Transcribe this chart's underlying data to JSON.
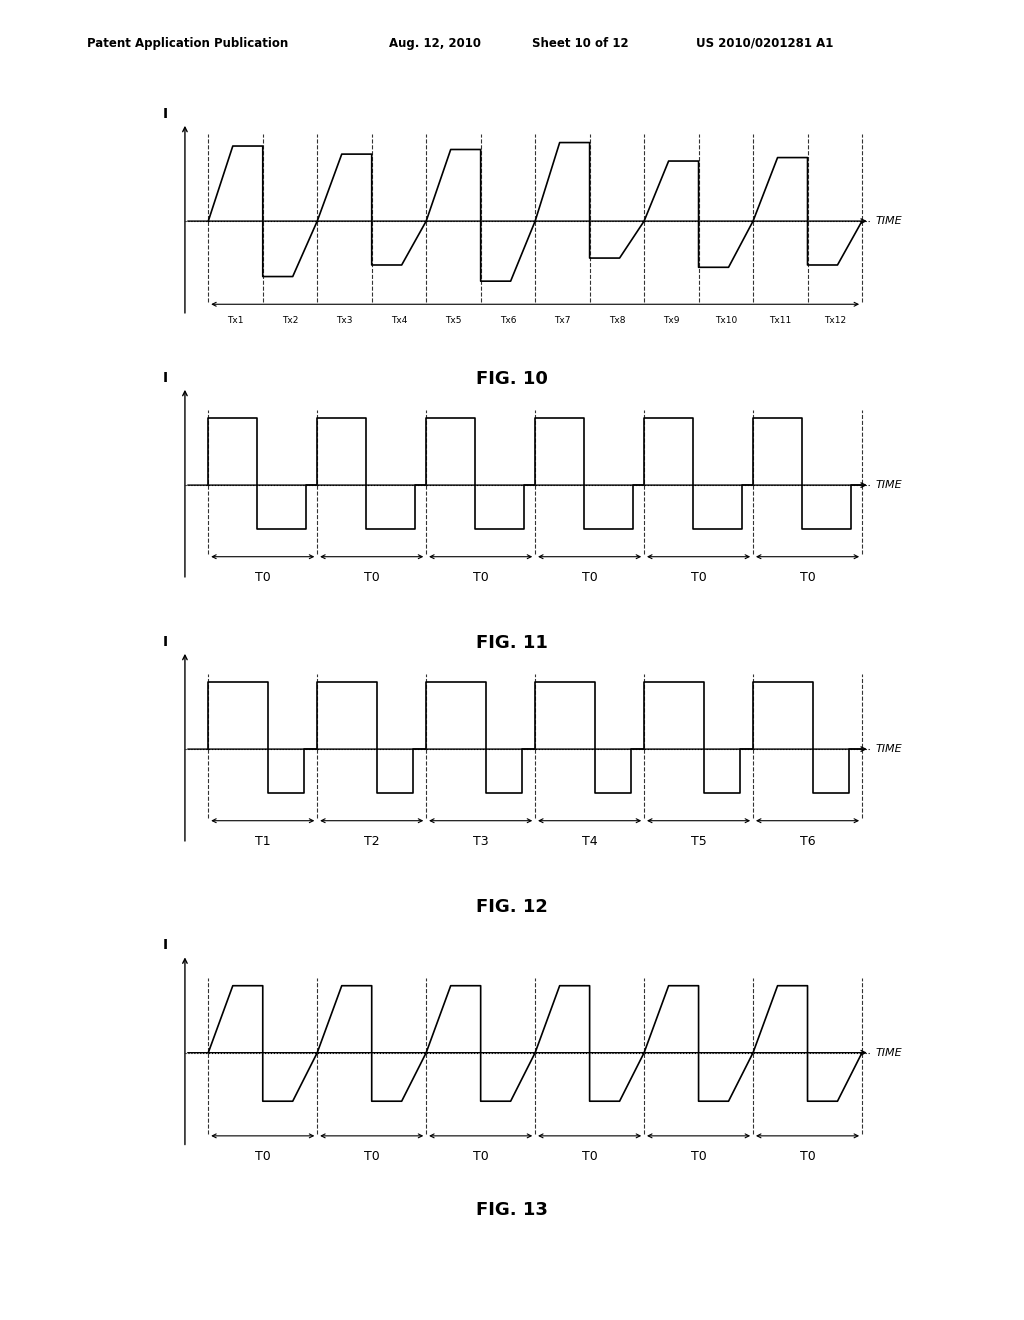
{
  "bg_color": "#ffffff",
  "header_line1": "Patent Application Publication",
  "header_line2": "Aug. 12, 2010",
  "header_line3": "Sheet 10 of 12",
  "header_line4": "US 2010/0201281 A1",
  "fig10_tx_labels": [
    "Tx1",
    "Tx2",
    "Tx3",
    "Tx4",
    "Tx5",
    "Tx6",
    "Tx7",
    "Tx8",
    "Tx9",
    "Tx10",
    "Tx11",
    "Tx12"
  ],
  "fig11_labels": [
    "T0",
    "T0",
    "T0",
    "T0",
    "T0",
    "T0"
  ],
  "fig12_labels": [
    "T1",
    "T2",
    "T3",
    "T4",
    "T5",
    "T6"
  ],
  "fig13_labels": [
    "T0",
    "T0",
    "T0",
    "T0",
    "T0",
    "T0"
  ],
  "fig_titles": [
    "FIG. 10",
    "FIG. 11",
    "FIG. 12",
    "FIG. 13"
  ]
}
